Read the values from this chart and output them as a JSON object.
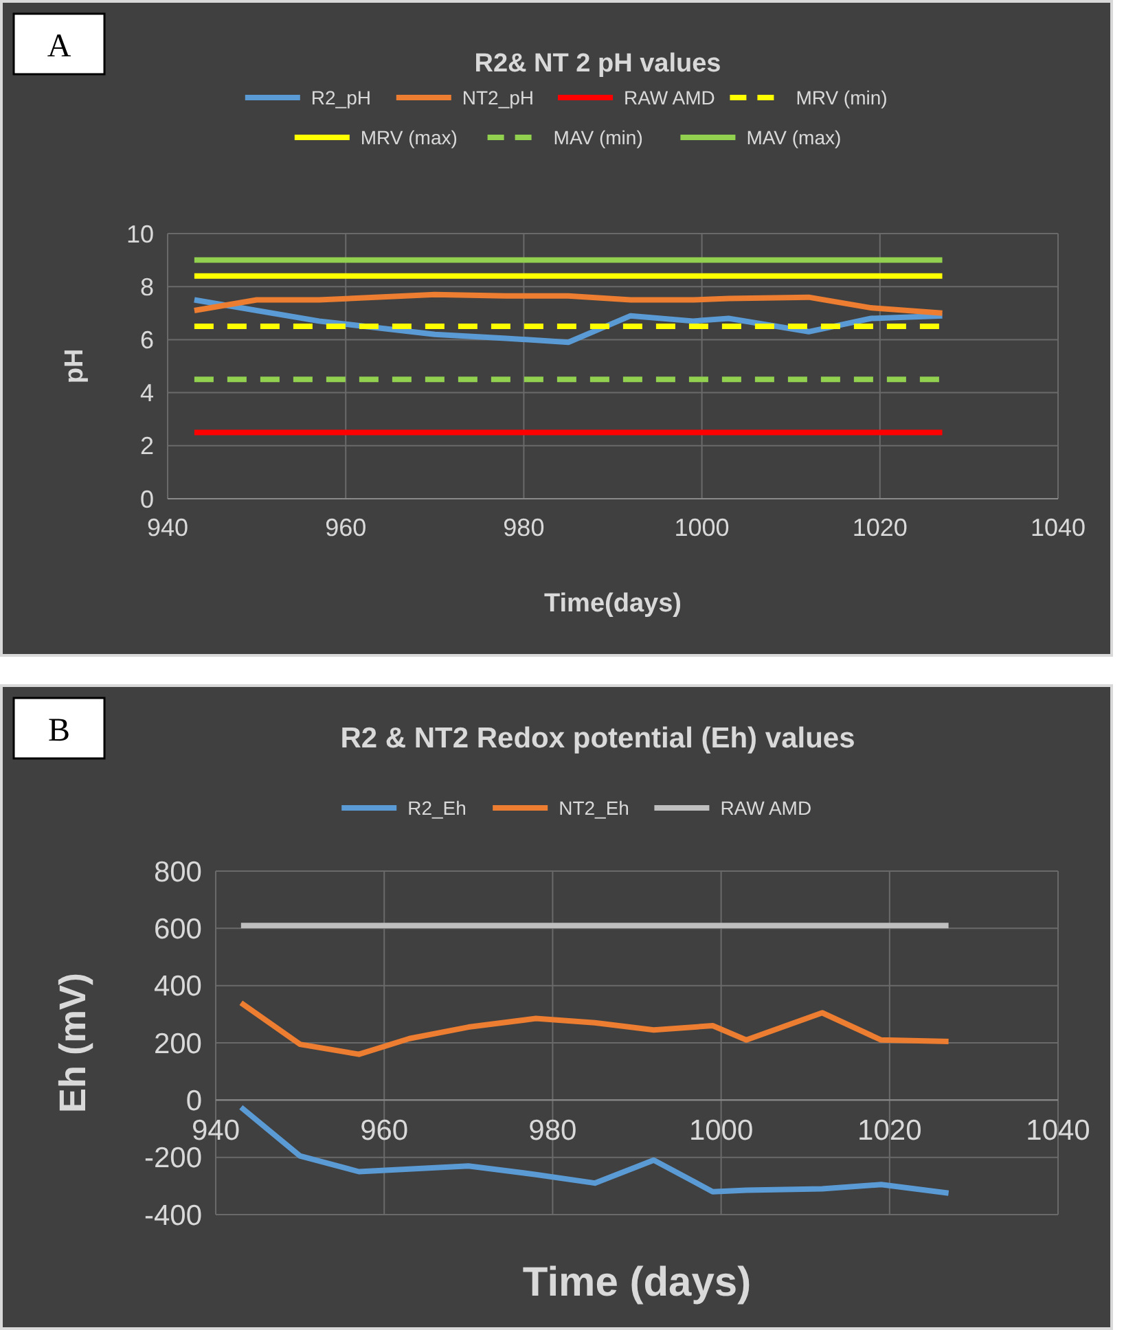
{
  "chart_data": [
    {
      "type": "line",
      "title": "R2& NT 2 pH values",
      "xlabel": "Time(days)",
      "ylabel": "pH",
      "annotations": [
        "A"
      ],
      "xlim": [
        940,
        1040
      ],
      "xticks": [
        940,
        960,
        980,
        1000,
        1020,
        1040
      ],
      "ylim": [
        0,
        10
      ],
      "yticks": [
        0,
        2,
        4,
        6,
        8,
        10
      ],
      "grid": true,
      "legend": "top",
      "marker": "none",
      "x": [
        943,
        950,
        957,
        970,
        978,
        985,
        992,
        999,
        1003,
        1012,
        1019,
        1027
      ],
      "series": [
        {
          "name": "R2_pH",
          "color": "#5b9bd5",
          "values": [
            7.5,
            7.1,
            6.7,
            6.2,
            6.05,
            5.9,
            6.9,
            6.7,
            6.8,
            6.3,
            6.8,
            6.9
          ]
        },
        {
          "name": "NT2_pH",
          "color": "#ed7d31",
          "values": [
            7.1,
            7.5,
            7.5,
            7.7,
            7.65,
            7.65,
            7.5,
            7.5,
            7.55,
            7.6,
            7.2,
            7.0
          ]
        },
        {
          "name": "RAW AMD",
          "color": "#ff0000",
          "x": [
            943,
            1027
          ],
          "values": [
            2.5,
            2.5
          ]
        },
        {
          "name": "MRV (min)",
          "color": "#ffff00",
          "x": [
            943,
            1027
          ],
          "values": [
            6.5,
            6.5
          ],
          "line_style": "dashed"
        },
        {
          "name": "MRV (max)",
          "color": "#ffff00",
          "x": [
            943,
            1027
          ],
          "values": [
            8.4,
            8.4
          ]
        },
        {
          "name": "MAV (min)",
          "color": "#92d050",
          "x": [
            943,
            1027
          ],
          "values": [
            4.5,
            4.5
          ],
          "line_style": "dashed"
        },
        {
          "name": "MAV (max)",
          "color": "#92d050",
          "x": [
            943,
            1027
          ],
          "values": [
            9.0,
            9.0
          ]
        }
      ]
    },
    {
      "type": "line",
      "title": "R2 & NT2 Redox potential (Eh) values",
      "xlabel": "Time (days)",
      "ylabel": "Eh (mV)",
      "annotations": [
        "B"
      ],
      "xlim": [
        940,
        1040
      ],
      "xticks": [
        940,
        960,
        980,
        1000,
        1020,
        1040
      ],
      "ylim": [
        -400,
        800
      ],
      "yticks": [
        -400,
        -200,
        0,
        200,
        400,
        600,
        800
      ],
      "grid": true,
      "legend": "top",
      "marker": "none",
      "series": [
        {
          "name": "R2_Eh",
          "color": "#5b9bd5",
          "x": [
            943,
            950,
            957,
            970,
            978,
            985,
            992,
            999,
            1003,
            1012,
            1019,
            1027
          ],
          "values": [
            -25,
            -195,
            -250,
            -230,
            -260,
            -290,
            -210,
            -320,
            -315,
            -310,
            -295,
            -325
          ]
        },
        {
          "name": "NT2_Eh",
          "color": "#ed7d31",
          "x": [
            943,
            950,
            957,
            963,
            970,
            978,
            985,
            992,
            999,
            1003,
            1012,
            1019,
            1027
          ],
          "values": [
            340,
            195,
            160,
            215,
            255,
            285,
            270,
            245,
            260,
            210,
            305,
            210,
            205
          ]
        },
        {
          "name": "RAW AMD",
          "color": "#bfbfbf",
          "x": [
            943,
            1027
          ],
          "values": [
            610,
            610
          ]
        }
      ]
    }
  ]
}
